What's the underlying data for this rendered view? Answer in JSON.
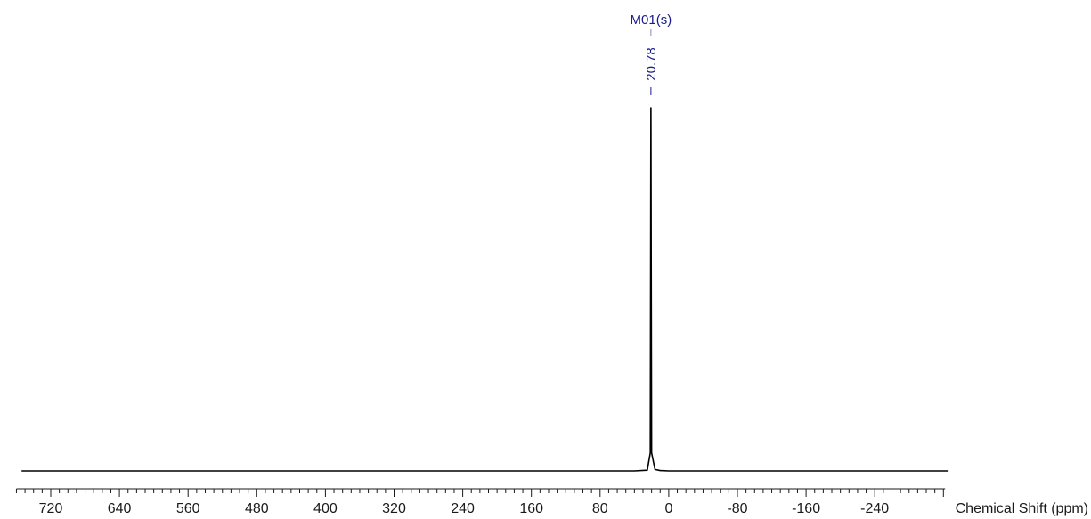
{
  "chart_data": {
    "type": "line",
    "title": "",
    "xlabel": "Chemical Shift (ppm)",
    "ylabel": "",
    "x_reversed": true,
    "xlim": [
      760,
      -322
    ],
    "x_major_ticks": [
      720,
      640,
      560,
      480,
      400,
      320,
      240,
      160,
      80,
      0,
      -80,
      -160,
      -240
    ],
    "x_minor_step": 10,
    "grid": false,
    "series": [
      {
        "values": [
          [
            754,
            0
          ],
          [
            40,
            0
          ],
          [
            25,
            0.002
          ],
          [
            21.5,
            0.05
          ],
          [
            20.78,
            1.0
          ],
          [
            20.0,
            0.05
          ],
          [
            16,
            0.004
          ],
          [
            10,
            0.001
          ],
          [
            0,
            0
          ],
          [
            -325,
            0
          ]
        ]
      }
    ],
    "annotations": {
      "multiplet_label": "M01(s)",
      "peak_value": "20.78",
      "peak_x": 20.78
    },
    "colors": {
      "spectrum": "#000000",
      "annotation": "#1a1a8c",
      "axis": "#1a1a1a"
    }
  }
}
